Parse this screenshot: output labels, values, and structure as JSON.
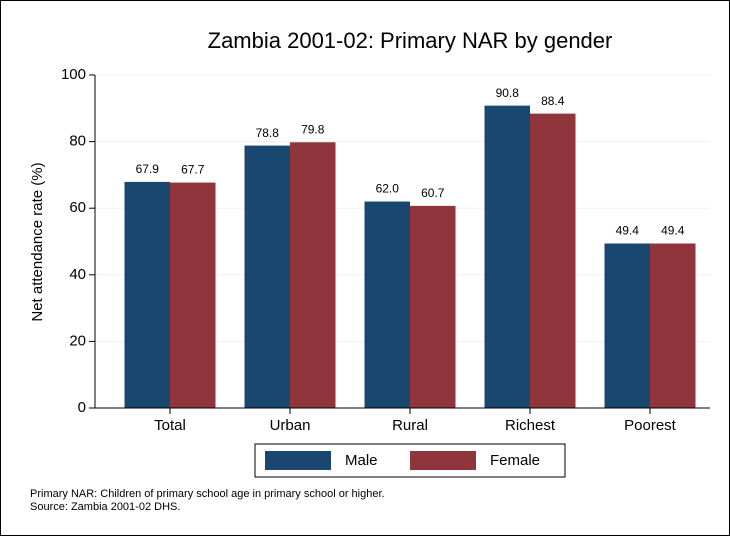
{
  "chart_data": {
    "type": "bar",
    "title": "Zambia 2001-02: Primary NAR by gender",
    "y_label": "Net attendance rate (%)",
    "categories": [
      "Total",
      "Urban",
      "Rural",
      "Richest",
      "Poorest"
    ],
    "series": [
      {
        "name": "Male",
        "color": "#1a476f",
        "values": [
          67.9,
          78.8,
          62.0,
          90.8,
          49.4
        ],
        "value_labels": [
          "67.9",
          "78.8",
          "62.0",
          "90.8",
          "49.4"
        ]
      },
      {
        "name": "Female",
        "color": "#90353b",
        "values": [
          67.7,
          79.8,
          60.7,
          88.4,
          49.4
        ]
      }
    ],
    "ylim": [
      0,
      100
    ],
    "yticks": [
      0,
      20,
      40,
      60,
      80,
      100
    ],
    "grid": true,
    "legend": "bottom",
    "notes": [
      "Primary NAR: Children of primary school age in primary school or higher.",
      "Source: Zambia 2001-02 DHS."
    ]
  }
}
